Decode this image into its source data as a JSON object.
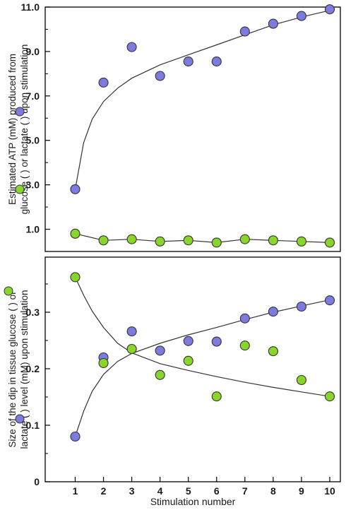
{
  "chart_data": [
    {
      "type": "scatter",
      "panel": "top",
      "ylabel_lines": [
        "Estimated ATP (mM) produced from",
        "glucose (  ) or lactate (  ) upon stimulation"
      ],
      "ylim": [
        0,
        11
      ],
      "yticks": [
        "1.0",
        "3.0",
        "5.0",
        "7.0",
        "9.0",
        "11.0"
      ],
      "ytick_values": [
        1,
        3,
        5,
        7,
        9,
        11
      ],
      "x": [
        1,
        2,
        3,
        4,
        5,
        6,
        7,
        8,
        9,
        10
      ],
      "series": [
        {
          "color": "#7b7be0",
          "marker": "circle",
          "values": [
            2.8,
            7.6,
            9.2,
            7.9,
            8.55,
            8.55,
            9.9,
            10.25,
            10.6,
            10.9
          ],
          "fit": "curve"
        },
        {
          "color": "#88d62a",
          "marker": "circle",
          "values": [
            0.8,
            0.5,
            0.55,
            0.45,
            0.5,
            0.4,
            0.55,
            0.5,
            0.45,
            0.4
          ],
          "fit": "line"
        }
      ],
      "fit_curve": [
        [
          1,
          2.8
        ],
        [
          1.3,
          4.9
        ],
        [
          1.6,
          5.95
        ],
        [
          2,
          6.75
        ],
        [
          2.5,
          7.35
        ],
        [
          3,
          7.8
        ],
        [
          4,
          8.4
        ],
        [
          5,
          8.85
        ],
        [
          6,
          9.3
        ],
        [
          7,
          9.75
        ],
        [
          8,
          10.2
        ],
        [
          9,
          10.55
        ],
        [
          10,
          10.85
        ]
      ],
      "grid": false
    },
    {
      "type": "scatter",
      "panel": "bottom",
      "xlabel": "Stimulation number",
      "ylabel_lines": [
        "Size of the dip in tissue glucose (  ) or",
        "lactate (  ) level (mM) upon stimulation"
      ],
      "xlim": [
        0,
        10.5
      ],
      "xticks": [
        "1",
        "2",
        "3",
        "4",
        "5",
        "6",
        "7",
        "8",
        "9",
        "10"
      ],
      "ylim": [
        0,
        0.36
      ],
      "yticks": [
        "0",
        "0.1",
        "0.2",
        "0.3"
      ],
      "ytick_values": [
        0,
        0.1,
        0.2,
        0.3
      ],
      "x": [
        1,
        2,
        3,
        4,
        5,
        6,
        7,
        8,
        9,
        10
      ],
      "series": [
        {
          "color": "#7b7be0",
          "marker": "circle",
          "values": [
            0.08,
            0.22,
            0.266,
            0.232,
            0.249,
            0.248,
            0.289,
            0.301,
            0.31,
            0.321
          ]
        },
        {
          "color": "#88d62a",
          "marker": "circle",
          "values": [
            0.362,
            0.21,
            0.235,
            0.189,
            0.214,
            0.151,
            0.241,
            0.231,
            0.18,
            0.151
          ]
        }
      ],
      "fit_curves": [
        {
          "color": "#7b7be0",
          "points": [
            [
              1,
              0.08
            ],
            [
              1.3,
              0.125
            ],
            [
              1.6,
              0.16
            ],
            [
              2,
              0.19
            ],
            [
              2.5,
              0.213
            ],
            [
              3,
              0.227
            ],
            [
              4,
              0.245
            ],
            [
              5,
              0.26
            ],
            [
              6,
              0.273
            ],
            [
              7,
              0.287
            ],
            [
              8,
              0.3
            ],
            [
              9,
              0.311
            ],
            [
              10,
              0.322
            ]
          ]
        },
        {
          "color": "#88d62a",
          "points": [
            [
              1,
              0.362
            ],
            [
              1.3,
              0.33
            ],
            [
              1.6,
              0.302
            ],
            [
              2,
              0.273
            ],
            [
              2.5,
              0.245
            ],
            [
              3,
              0.228
            ],
            [
              4,
              0.209
            ],
            [
              5,
              0.197
            ],
            [
              6,
              0.186
            ],
            [
              7,
              0.176
            ],
            [
              8,
              0.167
            ],
            [
              9,
              0.159
            ],
            [
              10,
              0.151
            ]
          ]
        }
      ],
      "grid": false
    }
  ]
}
